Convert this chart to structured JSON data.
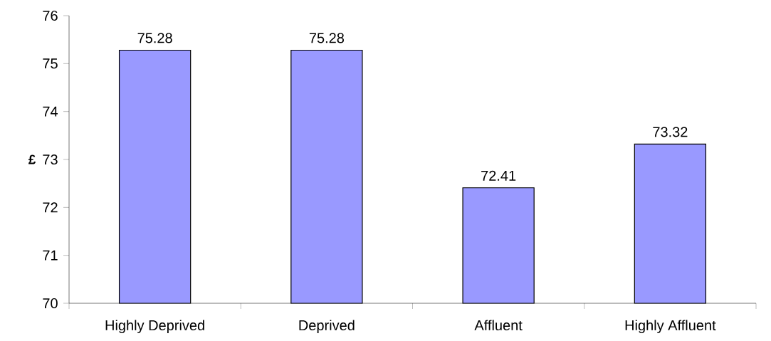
{
  "chart_data": {
    "type": "bar",
    "ylabel": "£",
    "categories": [
      "Highly Deprived",
      "Deprived",
      "Affluent",
      "Highly Affluent"
    ],
    "values": [
      75.28,
      75.28,
      72.41,
      73.32
    ],
    "color": "#9999ff",
    "ylim": [
      70,
      76
    ],
    "yticks": [
      70,
      71,
      72,
      73,
      74,
      75,
      76
    ],
    "data_labels": true
  }
}
